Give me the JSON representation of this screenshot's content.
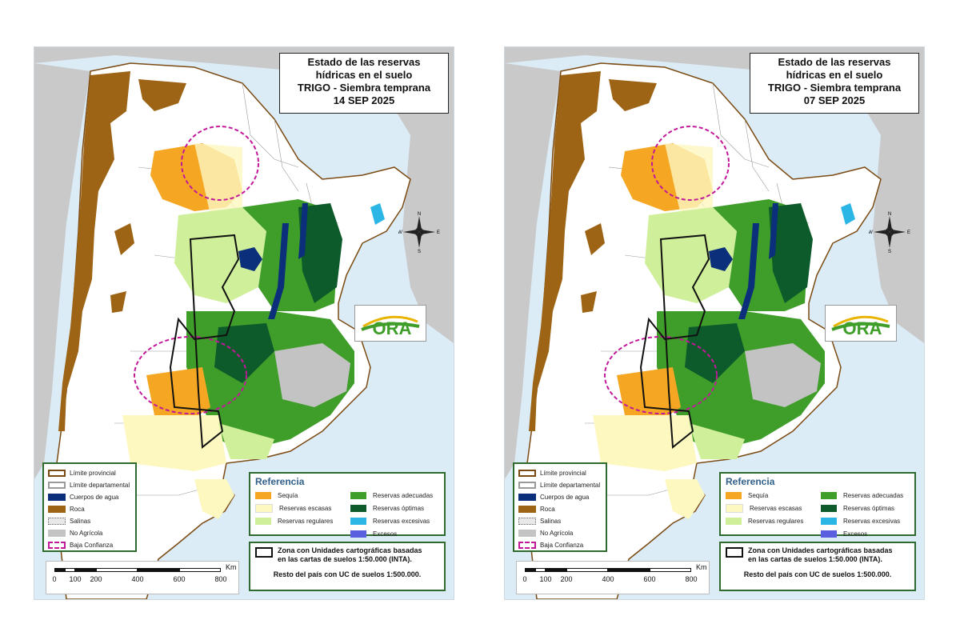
{
  "maps": [
    {
      "title_lines": [
        "Estado de las reservas",
        "hídricas en el suelo",
        "TRIGO - Siembra temprana",
        "14 SEP 2025"
      ]
    },
    {
      "title_lines": [
        "Estado de las reservas",
        "hídricas en el suelo",
        "TRIGO - Siembra temprana",
        "07 SEP 2025"
      ]
    }
  ],
  "legend_boundaries": [
    {
      "label": "Límite provincial",
      "color": "#7b4a12",
      "style": "outline"
    },
    {
      "label": "Límite departamental",
      "color": "#9a9a9a",
      "style": "outline"
    },
    {
      "label": "Cuerpos de agua",
      "color": "#0b2f7a",
      "style": "fill"
    },
    {
      "label": "Roca",
      "color": "#9c6414",
      "style": "fill"
    },
    {
      "label": "Salinas",
      "color": "#e8e8e8",
      "style": "dotted"
    },
    {
      "label": "No Agrícola",
      "color": "#c3c3c3",
      "style": "fill"
    },
    {
      "label": "Baja Confianza",
      "color": "#c2189a",
      "style": "dashed"
    }
  ],
  "referencia": {
    "title": "Referencia",
    "items": [
      {
        "label": "Sequía",
        "color": "#f5a623"
      },
      {
        "label": "Reservas adecuadas",
        "color": "#3f9e2a"
      },
      {
        "label": "Reservas escasas",
        "color": "#fdf7c0"
      },
      {
        "label": "Reservas óptimas",
        "color": "#0d5a2a"
      },
      {
        "label": "Reservas regulares",
        "color": "#cfef9a"
      },
      {
        "label": "Reservas excesivas",
        "color": "#2bb6e6"
      },
      {
        "label": "",
        "color": ""
      },
      {
        "label": "Excesos",
        "color": "#5a5fe0"
      }
    ]
  },
  "zone_note": {
    "line1": "Zona con Unidades cartográficas basadas",
    "line2": "en las cartas de suelos 1:50.000 (INTA).",
    "line3": "Resto del país con UC de suelos 1:500.000."
  },
  "scale": {
    "unit": "Km",
    "ticks": [
      "0",
      "100",
      "200",
      "400",
      "600",
      "800"
    ]
  },
  "compass": {
    "n": "N",
    "s": "S",
    "e": "E",
    "w": "W"
  },
  "logo": {
    "text": "ORA",
    "color": "#3f9e2a",
    "accent": "#e8b400"
  },
  "colors": {
    "ocean": "#dcecf7",
    "neighbor": "#c9c9c9",
    "land": "#ffffff",
    "rock": "#9c6414",
    "water_body": "#0b2f7a",
    "low_confidence": "#c2189a"
  }
}
